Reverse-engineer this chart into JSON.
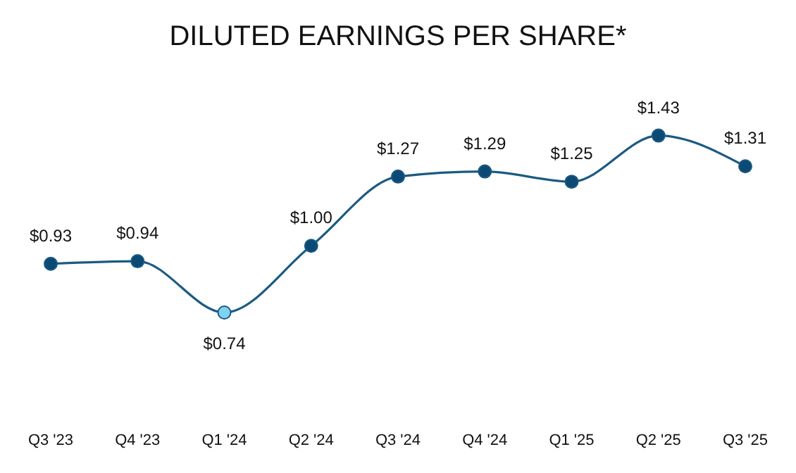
{
  "chart_data": {
    "type": "line",
    "title": "DILUTED EARNINGS PER SHARE*",
    "categories": [
      "Q3 '23",
      "Q4 '23",
      "Q1 '24",
      "Q2 '24",
      "Q3 '24",
      "Q4 '24",
      "Q1 '25",
      "Q2 '25",
      "Q3 '25"
    ],
    "series": [
      {
        "color": "#1b5a82",
        "values": [
          0.93,
          0.94,
          0.74,
          1.0,
          1.27,
          1.29,
          1.25,
          1.43,
          1.31
        ],
        "colors": [
          "#0b4a75",
          "#0b4a75",
          "#7fd3f0",
          "#0b4a75",
          "#0b4a75",
          "#0b4a75",
          "#0b4a75",
          "#0b4a75",
          "#0b4a75"
        ],
        "value_labels": [
          "$0.93",
          "$0.94",
          "$0.74",
          "$1.00",
          "$1.27",
          "$1.29",
          "$1.25",
          "$1.43",
          "$1.31"
        ]
      }
    ],
    "marker": "circle"
  }
}
